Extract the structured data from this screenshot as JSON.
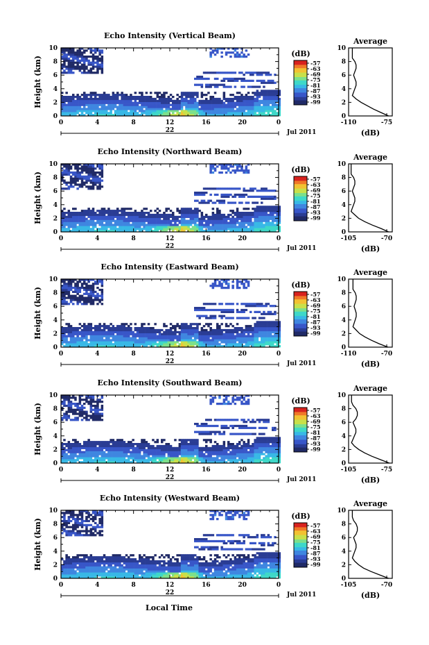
{
  "figure": {
    "x_title": "Local Time",
    "date_label": "Jul 2011",
    "day_label": "22",
    "y_title": "Height (km)",
    "colorbar_unit": "(dB)",
    "colorbar_ticks": [
      "-57",
      "-63",
      "-69",
      "-75",
      "-81",
      "-87",
      "-93",
      "-99"
    ],
    "avg_title": "Average",
    "avg_unit": "(dB)"
  },
  "chart_data": [
    {
      "type": "heatmap",
      "title": "Echo Intensity (Vertical Beam)",
      "xlabel": "Local Time",
      "ylabel": "Height (km)",
      "x_ticks": [
        "0",
        "4",
        "8",
        "12",
        "16",
        "20",
        "0"
      ],
      "xlim": [
        0,
        24
      ],
      "y_ticks": [
        "0",
        "2",
        "4",
        "6",
        "8",
        "10"
      ],
      "ylim": [
        0,
        10
      ],
      "colorbar": {
        "label": "(dB)",
        "range": [
          -99,
          -57
        ],
        "ticks": [
          -57,
          -63,
          -69,
          -75,
          -81,
          -87,
          -93,
          -99
        ]
      },
      "average_profile": {
        "title": "Average",
        "xlabel": "(dB)",
        "x_ticks": [
          "-110",
          "-75"
        ],
        "xlim": [
          -110,
          -75
        ],
        "height_km": [
          0,
          0.5,
          1,
          1.5,
          2,
          2.5,
          3,
          3.5,
          4,
          4.5,
          5,
          5.5,
          6,
          6.5,
          7,
          7.5,
          8,
          8.5,
          9,
          9.5,
          10
        ],
        "values_db": [
          -78,
          -84,
          -90,
          -95,
          -100,
          -104,
          -107,
          -106,
          -105,
          -104,
          -104,
          -105,
          -106,
          -105,
          -104,
          -104,
          -105,
          -107,
          -107,
          -107,
          -107
        ]
      }
    },
    {
      "type": "heatmap",
      "title": "Echo Intensity (Northward Beam)",
      "xlabel": "Local Time",
      "ylabel": "Height (km)",
      "x_ticks": [
        "0",
        "4",
        "8",
        "12",
        "16",
        "20",
        "0"
      ],
      "xlim": [
        0,
        24
      ],
      "y_ticks": [
        "0",
        "2",
        "4",
        "6",
        "8",
        "10"
      ],
      "ylim": [
        0,
        10
      ],
      "colorbar": {
        "label": "(dB)",
        "range": [
          -99,
          -57
        ],
        "ticks": [
          -57,
          -63,
          -69,
          -75,
          -81,
          -87,
          -93,
          -99
        ]
      },
      "average_profile": {
        "title": "Average",
        "xlabel": "(dB)",
        "x_ticks": [
          "-105",
          "-70"
        ],
        "xlim": [
          -105,
          -70
        ],
        "height_km": [
          0,
          0.5,
          1,
          1.5,
          2,
          2.5,
          3,
          3.5,
          4,
          4.5,
          5,
          5.5,
          6,
          6.5,
          7,
          7.5,
          8,
          8.5,
          9,
          9.5,
          10
        ],
        "values_db": [
          -73,
          -79,
          -86,
          -92,
          -97,
          -100,
          -103,
          -102,
          -101,
          -100,
          -100,
          -101,
          -102,
          -101,
          -100,
          -100,
          -101,
          -103,
          -103,
          -103,
          -103
        ]
      }
    },
    {
      "type": "heatmap",
      "title": "Echo Intensity (Eastward Beam)",
      "xlabel": "Local Time",
      "ylabel": "Height (km)",
      "x_ticks": [
        "0",
        "4",
        "8",
        "12",
        "16",
        "20",
        "0"
      ],
      "xlim": [
        0,
        24
      ],
      "y_ticks": [
        "0",
        "2",
        "4",
        "6",
        "8",
        "10"
      ],
      "ylim": [
        0,
        10
      ],
      "colorbar": {
        "label": "(dB)",
        "range": [
          -99,
          -57
        ],
        "ticks": [
          -57,
          -63,
          -69,
          -75,
          -81,
          -87,
          -93,
          -99
        ]
      },
      "average_profile": {
        "title": "Average",
        "xlabel": "(dB)",
        "x_ticks": [
          "-110",
          "-70"
        ],
        "xlim": [
          -110,
          -70
        ],
        "height_km": [
          0,
          0.5,
          1,
          1.5,
          2,
          2.5,
          3,
          3.5,
          4,
          4.5,
          5,
          5.5,
          6,
          6.5,
          7,
          7.5,
          8,
          8.5,
          9,
          9.5,
          10
        ],
        "values_db": [
          -74,
          -82,
          -89,
          -95,
          -100,
          -103,
          -106,
          -105,
          -104,
          -103,
          -103,
          -104,
          -105,
          -104,
          -103,
          -103,
          -104,
          -106,
          -106,
          -106,
          -106
        ]
      }
    },
    {
      "type": "heatmap",
      "title": "Echo Intensity (Southward Beam)",
      "xlabel": "Local Time",
      "ylabel": "Height (km)",
      "x_ticks": [
        "0",
        "4",
        "8",
        "12",
        "16",
        "20",
        "0"
      ],
      "xlim": [
        0,
        24
      ],
      "y_ticks": [
        "0",
        "2",
        "4",
        "6",
        "8",
        "10"
      ],
      "ylim": [
        0,
        10
      ],
      "colorbar": {
        "label": "(dB)",
        "range": [
          -99,
          -57
        ],
        "ticks": [
          -57,
          -63,
          -69,
          -75,
          -81,
          -87,
          -93,
          -99
        ]
      },
      "average_profile": {
        "title": "Average",
        "xlabel": "(dB)",
        "x_ticks": [
          "-105",
          "-75"
        ],
        "xlim": [
          -105,
          -75
        ],
        "height_km": [
          0,
          0.5,
          1,
          1.5,
          2,
          2.5,
          3,
          3.5,
          4,
          4.5,
          5,
          5.5,
          6,
          6.5,
          7,
          7.5,
          8,
          8.5,
          9,
          9.5,
          10
        ],
        "values_db": [
          -77,
          -83,
          -89,
          -94,
          -98,
          -101,
          -103,
          -102,
          -101,
          -100,
          -100,
          -101,
          -102,
          -100,
          -99,
          -99,
          -100,
          -102,
          -103,
          -103,
          -103
        ]
      }
    },
    {
      "type": "heatmap",
      "title": "Echo Intensity (Westward Beam)",
      "xlabel": "Local Time",
      "ylabel": "Height (km)",
      "x_ticks": [
        "0",
        "4",
        "8",
        "12",
        "16",
        "20",
        "0"
      ],
      "xlim": [
        0,
        24
      ],
      "y_ticks": [
        "0",
        "2",
        "4",
        "6",
        "8",
        "10"
      ],
      "ylim": [
        0,
        10
      ],
      "colorbar": {
        "label": "(dB)",
        "range": [
          -99,
          -57
        ],
        "ticks": [
          -57,
          -63,
          -69,
          -75,
          -81,
          -87,
          -93,
          -99
        ]
      },
      "average_profile": {
        "title": "Average",
        "xlabel": "(dB)",
        "x_ticks": [
          "-105",
          "-70"
        ],
        "xlim": [
          -105,
          -70
        ],
        "height_km": [
          0,
          0.5,
          1,
          1.5,
          2,
          2.5,
          3,
          3.5,
          4,
          4.5,
          5,
          5.5,
          6,
          6.5,
          7,
          7.5,
          8,
          8.5,
          9,
          9.5,
          10
        ],
        "values_db": [
          -73,
          -80,
          -87,
          -93,
          -97,
          -100,
          -102,
          -101,
          -100,
          -99,
          -99,
          -100,
          -101,
          -99,
          -98,
          -98,
          -99,
          -101,
          -102,
          -102,
          -102
        ]
      }
    }
  ],
  "colors": {
    "colormap": [
      "#202a66",
      "#2a3c94",
      "#3856c8",
      "#3f86e0",
      "#38b8e6",
      "#3ed8c8",
      "#7de08a",
      "#c8e04a",
      "#f2c232",
      "#f07828",
      "#d8231e"
    ]
  }
}
